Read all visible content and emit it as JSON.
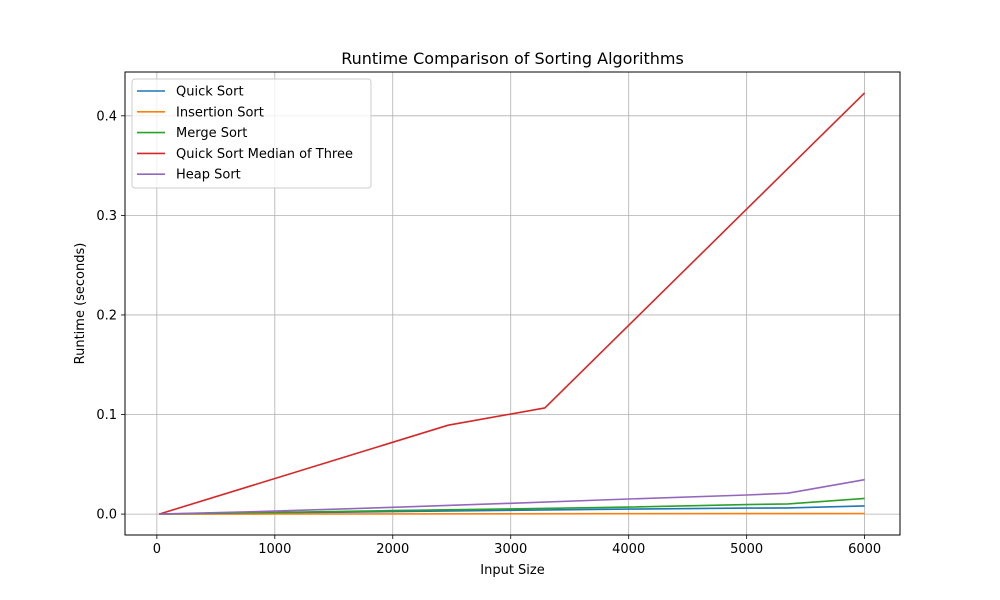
{
  "chart_data": {
    "type": "line",
    "title": "Runtime Comparison of Sorting Algorithms",
    "xlabel": "Input Size",
    "ylabel": "Runtime (seconds)",
    "xlim": [
      -270,
      6300
    ],
    "ylim": [
      -0.021,
      0.444
    ],
    "xticks": [
      0,
      1000,
      2000,
      3000,
      4000,
      5000,
      6000
    ],
    "xtick_labels": [
      "0",
      "1000",
      "2000",
      "3000",
      "4000",
      "5000",
      "6000"
    ],
    "yticks": [
      0.0,
      0.1,
      0.2,
      0.3,
      0.4
    ],
    "ytick_labels": [
      "0.0",
      "0.1",
      "0.2",
      "0.3",
      "0.4"
    ],
    "grid": true,
    "legend_position": "top-left",
    "series": [
      {
        "name": "Quick Sort",
        "color": "#1f77b4",
        "points": [
          [
            20,
            0.0
          ],
          [
            1000,
            0.0012
          ],
          [
            2000,
            0.0025
          ],
          [
            3000,
            0.0038
          ],
          [
            4000,
            0.005
          ],
          [
            5000,
            0.006
          ],
          [
            5350,
            0.0062
          ],
          [
            6000,
            0.0082
          ]
        ]
      },
      {
        "name": "Insertion Sort",
        "color": "#ff7f0e",
        "points": [
          [
            20,
            0.0
          ],
          [
            1000,
            0.0001
          ],
          [
            2000,
            0.0002
          ],
          [
            3000,
            0.0003
          ],
          [
            4000,
            0.0004
          ],
          [
            5000,
            0.0005
          ],
          [
            6000,
            0.0006
          ]
        ]
      },
      {
        "name": "Merge Sort",
        "color": "#2ca02c",
        "points": [
          [
            20,
            0.0
          ],
          [
            1000,
            0.0017
          ],
          [
            2000,
            0.0035
          ],
          [
            3000,
            0.0052
          ],
          [
            4000,
            0.007
          ],
          [
            5000,
            0.0095
          ],
          [
            5350,
            0.0102
          ],
          [
            6000,
            0.0158
          ]
        ]
      },
      {
        "name": "Quick Sort Median of Three",
        "color": "#d62728",
        "points": [
          [
            20,
            0.0
          ],
          [
            2470,
            0.0893
          ],
          [
            3290,
            0.1066
          ],
          [
            6000,
            0.423
          ]
        ]
      },
      {
        "name": "Heap Sort",
        "color": "#9467bd",
        "points": [
          [
            20,
            0.0
          ],
          [
            1000,
            0.003
          ],
          [
            2000,
            0.0068
          ],
          [
            3000,
            0.0108
          ],
          [
            4000,
            0.0152
          ],
          [
            5000,
            0.0192
          ],
          [
            5350,
            0.021
          ],
          [
            6000,
            0.0345
          ]
        ]
      }
    ]
  }
}
